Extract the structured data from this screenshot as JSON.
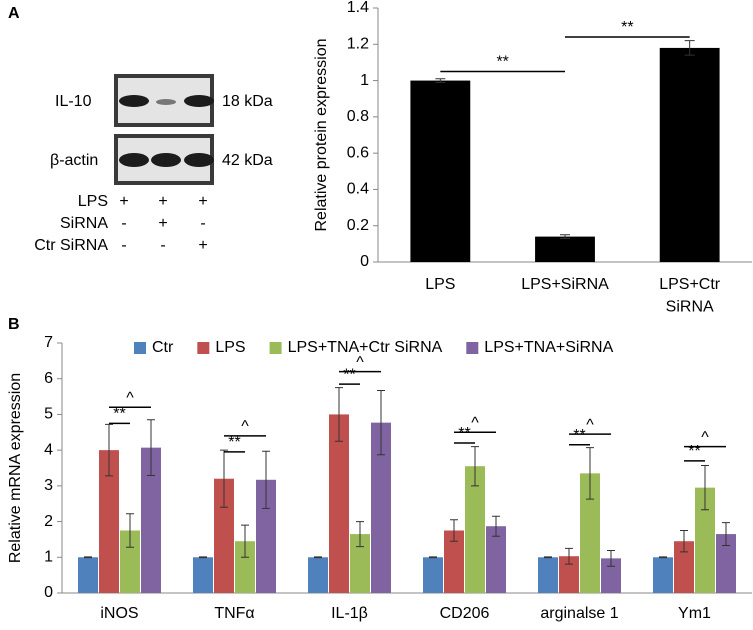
{
  "blot": {
    "proteins": [
      {
        "name": "IL-10",
        "size": "18 kDa"
      },
      {
        "name": "β-actin",
        "size": "42 kDa"
      }
    ],
    "treatments": [
      {
        "name": "LPS",
        "signs": [
          "+",
          "+",
          "+"
        ]
      },
      {
        "name": "SiRNA",
        "signs": [
          "-",
          "+",
          "-"
        ]
      },
      {
        "name": "Ctr SiRNA",
        "signs": [
          "-",
          "-",
          "+"
        ]
      }
    ]
  },
  "chart_data": [
    {
      "type": "bar",
      "panel": "A",
      "y_label": "Relative protein expression",
      "categories": [
        "LPS",
        "LPS+SiRNA",
        "LPS+Ctr SiRNA"
      ],
      "values": [
        1.0,
        0.14,
        1.18
      ],
      "errors": [
        0.01,
        0.01,
        0.04
      ],
      "color": "#000000",
      "ylim": [
        0,
        1.4
      ],
      "yticks": [
        0,
        0.2,
        0.4,
        0.6,
        0.8,
        1,
        1.2,
        1.4
      ],
      "grid": false,
      "significance": [
        {
          "label": "**",
          "between": [
            0,
            1
          ],
          "y": 1.05
        },
        {
          "label": "**",
          "between": [
            1,
            2
          ],
          "y": 1.24
        }
      ]
    },
    {
      "type": "grouped-bar",
      "panel": "B",
      "y_label": "Relative mRNA expression",
      "categories": [
        "iNOS",
        "TNFα",
        "IL-1β",
        "CD206",
        "arginalse 1",
        "Ym1"
      ],
      "series": [
        {
          "name": "Ctr",
          "color": "#4f81bd",
          "values": [
            1,
            1,
            1,
            1,
            1,
            1
          ],
          "errors": [
            0.01,
            0.01,
            0.01,
            0.01,
            0.01,
            0.01
          ]
        },
        {
          "name": "LPS",
          "color": "#c0504d",
          "values": [
            4.0,
            3.2,
            5.0,
            1.75,
            1.03,
            1.45
          ],
          "errors": [
            0.72,
            0.8,
            0.75,
            0.3,
            0.22,
            0.3
          ]
        },
        {
          "name": "LPS+TNA+Ctr SiRNA",
          "color": "#9bbb59",
          "values": [
            1.75,
            1.45,
            1.65,
            3.55,
            3.35,
            2.95
          ],
          "errors": [
            0.47,
            0.45,
            0.35,
            0.55,
            0.72,
            0.62
          ]
        },
        {
          "name": "LPS+TNA+SiRNA",
          "color": "#8064a2",
          "values": [
            4.07,
            3.17,
            4.77,
            1.87,
            0.97,
            1.65
          ],
          "errors": [
            0.78,
            0.8,
            0.9,
            0.28,
            0.22,
            0.32
          ]
        }
      ],
      "ylim": [
        0,
        7
      ],
      "yticks": [
        0,
        1,
        2,
        3,
        4,
        5,
        6,
        7
      ],
      "grid": false,
      "legend": "top",
      "significance": [
        {
          "label": "**",
          "category": 0,
          "between": [
            1,
            2
          ],
          "y": 4.75
        },
        {
          "label": "^",
          "category": 0,
          "between": [
            1,
            3
          ],
          "y": 5.2
        },
        {
          "label": "**",
          "category": 1,
          "between": [
            1,
            2
          ],
          "y": 3.95
        },
        {
          "label": "^",
          "category": 1,
          "between": [
            1,
            3
          ],
          "y": 4.4
        },
        {
          "label": "**",
          "category": 2,
          "between": [
            1,
            2
          ],
          "y": 5.85
        },
        {
          "label": "^",
          "category": 2,
          "between": [
            1,
            3
          ],
          "y": 6.2
        },
        {
          "label": "**",
          "category": 3,
          "between": [
            1,
            2
          ],
          "y": 4.2
        },
        {
          "label": "^",
          "category": 3,
          "between": [
            1,
            3
          ],
          "y": 4.5
        },
        {
          "label": "**",
          "category": 4,
          "between": [
            1,
            2
          ],
          "y": 4.15
        },
        {
          "label": "^",
          "category": 4,
          "between": [
            1,
            3
          ],
          "y": 4.45
        },
        {
          "label": "**",
          "category": 5,
          "between": [
            1,
            2
          ],
          "y": 3.7
        },
        {
          "label": "^",
          "category": 5,
          "between": [
            1,
            3
          ],
          "y": 4.1
        }
      ]
    }
  ]
}
